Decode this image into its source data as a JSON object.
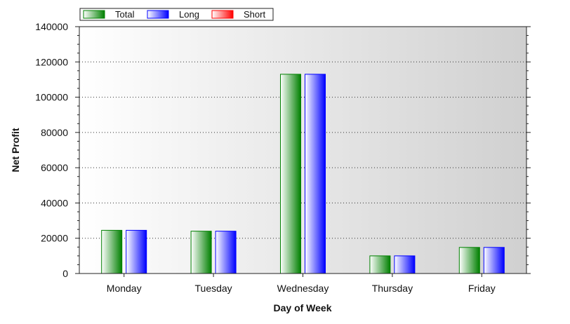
{
  "chart_data": {
    "type": "bar",
    "categories": [
      "Monday",
      "Tuesday",
      "Wednesday",
      "Thursday",
      "Friday"
    ],
    "series": [
      {
        "name": "Total",
        "values": [
          24500,
          24000,
          113000,
          10000,
          14800
        ],
        "color": "#008000"
      },
      {
        "name": "Long",
        "values": [
          24500,
          24000,
          113000,
          10000,
          14800
        ],
        "color": "#0000ff"
      },
      {
        "name": "Short",
        "values": [
          0,
          0,
          0,
          0,
          0
        ],
        "color": "#ff0000"
      }
    ],
    "xlabel": "Day of Week",
    "ylabel": "Net Profit",
    "ylim": [
      0,
      140000
    ],
    "yticks": [
      "0",
      "20000",
      "40000",
      "60000",
      "80000",
      "100000",
      "120000",
      "140000"
    ],
    "grid": true,
    "legend_position": "top-left"
  }
}
